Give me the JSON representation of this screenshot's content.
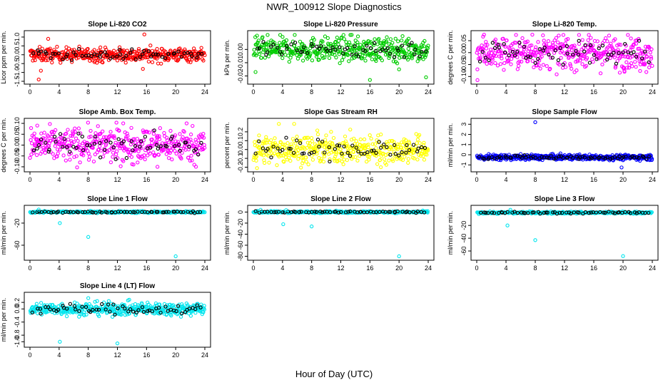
{
  "title": "NWR_100912  Slope Diagnostics",
  "xlabel": "Hour of Day (UTC)",
  "chart_data": [
    {
      "type": "scatter",
      "title": "Slope Li-820 CO2",
      "ylabel": "Licor ppm per min.",
      "color": "#ff0000",
      "xlim": [
        0,
        24
      ],
      "xticks": [
        "0",
        "4",
        "8",
        "12",
        "16",
        "20",
        "24"
      ],
      "ylim": [
        -1.5,
        1.2
      ],
      "yticks": [
        {
          "v": -1.5,
          "label": "-1.5"
        },
        {
          "v": -1.0,
          "label": "-1.0"
        },
        {
          "v": -0.5,
          "label": "-0.5"
        },
        {
          "v": 0.0,
          "label": "0.0"
        },
        {
          "v": 0.5,
          "label": "0.5"
        },
        {
          "v": 1.0,
          "label": "1.0"
        }
      ],
      "noise": 0.2,
      "n_color": 420,
      "n_black": 60,
      "outliers": [
        [
          15.7,
          1.15
        ],
        [
          15.5,
          -0.8
        ],
        [
          1.5,
          -0.9
        ],
        [
          2.5,
          0.9
        ],
        [
          1.2,
          -1.4
        ]
      ]
    },
    {
      "type": "scatter",
      "title": "Slope Li-820 Pressure",
      "ylabel": "kPa per min.",
      "color": "#00cc00",
      "xlim": [
        0,
        24
      ],
      "xticks": [
        "0",
        "4",
        "8",
        "12",
        "16",
        "20",
        "24"
      ],
      "ylim": [
        -0.024,
        0.012
      ],
      "yticks": [
        {
          "v": -0.02,
          "label": "-0.02"
        },
        {
          "v": -0.01,
          "label": "-0.01"
        },
        {
          "v": 0.0,
          "label": "0.00"
        }
      ],
      "noise": 0.0045,
      "n_color": 420,
      "n_black": 60,
      "outliers": [
        [
          16,
          -0.023
        ],
        [
          23.7,
          -0.021
        ],
        [
          13.5,
          0.011
        ],
        [
          0.3,
          -0.017
        ],
        [
          20,
          -0.015
        ]
      ]
    },
    {
      "type": "scatter",
      "title": "Slope Li-820 Temp.",
      "ylabel": "degrees C per min.",
      "color": "#ff00ff",
      "xlim": [
        0,
        24
      ],
      "xticks": [
        "0",
        "4",
        "8",
        "12",
        "16",
        "20",
        "24"
      ],
      "ylim": [
        -0.12,
        0.08
      ],
      "yticks": [
        {
          "v": -0.1,
          "label": "-0.10"
        },
        {
          "v": -0.05,
          "label": "-0.05"
        },
        {
          "v": 0.0,
          "label": "0.00"
        },
        {
          "v": 0.05,
          "label": "0.05"
        }
      ],
      "noise": 0.035,
      "n_color": 420,
      "n_black": 60,
      "outliers": [
        [
          0.1,
          -0.115
        ],
        [
          1.0,
          0.075
        ],
        [
          7.6,
          0.075
        ],
        [
          20.2,
          -0.08
        ]
      ]
    },
    {
      "type": "scatter",
      "title": "Slope Amb. Box Temp.",
      "ylabel": "degrees C per min.",
      "color": "#ff00ff",
      "xlim": [
        0,
        24
      ],
      "xticks": [
        "0",
        "4",
        "8",
        "12",
        "16",
        "20",
        "24"
      ],
      "ylim": [
        -0.11,
        0.11
      ],
      "yticks": [
        {
          "v": -0.1,
          "label": "-0.10"
        },
        {
          "v": -0.05,
          "label": "-0.05"
        },
        {
          "v": 0.0,
          "label": "0.00"
        },
        {
          "v": 0.05,
          "label": "0.05"
        },
        {
          "v": 0.1,
          "label": "0.10"
        }
      ],
      "noise": 0.04,
      "n_color": 420,
      "n_black": 60,
      "outliers": [
        [
          17.5,
          -0.1
        ],
        [
          21.5,
          0.1
        ],
        [
          1.0,
          0.09
        ],
        [
          12.8,
          0.1
        ]
      ]
    },
    {
      "type": "scatter",
      "title": "Slope Gas Stream RH",
      "ylabel": "percent per min.",
      "color": "#ffff00",
      "xlim": [
        0,
        24
      ],
      "xticks": [
        "0",
        "4",
        "8",
        "12",
        "16",
        "20",
        "24"
      ],
      "ylim": [
        -0.22,
        0.32
      ],
      "yticks": [
        {
          "v": -0.2,
          "label": "-0.2"
        },
        {
          "v": -0.1,
          "label": "-0.1"
        },
        {
          "v": 0.0,
          "label": "0.0"
        },
        {
          "v": 0.1,
          "label": "0.1"
        },
        {
          "v": 0.2,
          "label": "0.2"
        }
      ],
      "noise": 0.08,
      "n_color": 420,
      "n_black": 60,
      "outliers": [
        [
          3.5,
          0.29
        ],
        [
          5.6,
          0.29
        ],
        [
          17.5,
          -0.2
        ],
        [
          0.5,
          -0.21
        ]
      ]
    },
    {
      "type": "scatter",
      "title": "Slope Sample Flow",
      "ylabel": "ml/min per min.",
      "color": "#0000ff",
      "xlim": [
        0,
        24
      ],
      "xticks": [
        "0",
        "4",
        "8",
        "12",
        "16",
        "20",
        "24"
      ],
      "ylim": [
        -1.4,
        3.3
      ],
      "yticks": [
        {
          "v": -1,
          "label": "-1"
        },
        {
          "v": 0,
          "label": "0"
        },
        {
          "v": 1,
          "label": "1"
        },
        {
          "v": 2,
          "label": "2"
        },
        {
          "v": 3,
          "label": "3"
        }
      ],
      "noise": 0.13,
      "center": -0.25,
      "n_color": 460,
      "n_black": 70,
      "outliers": [
        [
          8.0,
          3.2
        ],
        [
          19.8,
          -1.25
        ]
      ]
    },
    {
      "type": "scatter",
      "title": "Slope Line 1 Flow",
      "ylabel": "ml/min per min.",
      "color": "#00e5ee",
      "xlim": [
        0,
        24
      ],
      "xticks": [
        "0",
        "4",
        "8",
        "12",
        "16",
        "20",
        "24"
      ],
      "ylim": [
        -82,
        7
      ],
      "yticks": [
        {
          "v": -60,
          "label": "-60"
        },
        {
          "v": -20,
          "label": "-20"
        }
      ],
      "noise": 0.9,
      "n_color": 300,
      "n_black": 60,
      "outliers": [
        [
          4.1,
          -20
        ],
        [
          8.0,
          -45
        ],
        [
          20.0,
          -80
        ],
        [
          1.2,
          4.5
        ]
      ]
    },
    {
      "type": "scatter",
      "title": "Slope Line 2 Flow",
      "ylabel": "ml/min per min.",
      "color": "#00e5ee",
      "xlim": [
        0,
        24
      ],
      "xticks": [
        "0",
        "4",
        "8",
        "12",
        "16",
        "20",
        "24"
      ],
      "ylim": [
        -82,
        7
      ],
      "yticks": [
        {
          "v": -80,
          "label": "-80"
        },
        {
          "v": -60,
          "label": "-60"
        },
        {
          "v": -40,
          "label": "-40"
        },
        {
          "v": -20,
          "label": "-20"
        },
        {
          "v": 0,
          "label": "0"
        }
      ],
      "noise": 0.9,
      "n_color": 300,
      "n_black": 60,
      "outliers": [
        [
          4.1,
          -22
        ],
        [
          8.0,
          -26
        ],
        [
          20.0,
          -80
        ],
        [
          4.5,
          3.5
        ],
        [
          1.0,
          4
        ]
      ]
    },
    {
      "type": "scatter",
      "title": "Slope Line 3 Flow",
      "ylabel": "ml/min per min.",
      "color": "#00e5ee",
      "xlim": [
        0,
        24
      ],
      "xticks": [
        "0",
        "4",
        "8",
        "12",
        "16",
        "20",
        "24"
      ],
      "ylim": [
        -70,
        7
      ],
      "yticks": [
        {
          "v": -60,
          "label": "-60"
        },
        {
          "v": -40,
          "label": "-40"
        },
        {
          "v": -20,
          "label": "-20"
        }
      ],
      "noise": 0.9,
      "n_color": 300,
      "n_black": 60,
      "outliers": [
        [
          4.2,
          -20
        ],
        [
          8.0,
          -43
        ],
        [
          20.0,
          -68
        ],
        [
          4.6,
          4.5
        ]
      ]
    },
    {
      "type": "scatter",
      "title": "Slope Line 4 (LT) Flow",
      "ylabel": "ml/min per min.",
      "color": "#00e5ee",
      "xlim": [
        0,
        24
      ],
      "xticks": [
        "0",
        "4",
        "8",
        "12",
        "16",
        "20",
        "24"
      ],
      "ylim": [
        -1.08,
        0.42
      ],
      "yticks": [
        {
          "v": -1.0,
          "label": "-1.0"
        },
        {
          "v": -0.8,
          "label": "-0.8"
        },
        {
          "v": -0.4,
          "label": "-0.4"
        },
        {
          "v": 0.0,
          "label": "0.0"
        },
        {
          "v": 0.2,
          "label": "0.2"
        }
      ],
      "noise": 0.1,
      "n_color": 420,
      "n_black": 60,
      "outliers": [
        [
          4.1,
          -1.0
        ],
        [
          12.0,
          -1.05
        ],
        [
          8.0,
          0.33
        ]
      ]
    }
  ]
}
